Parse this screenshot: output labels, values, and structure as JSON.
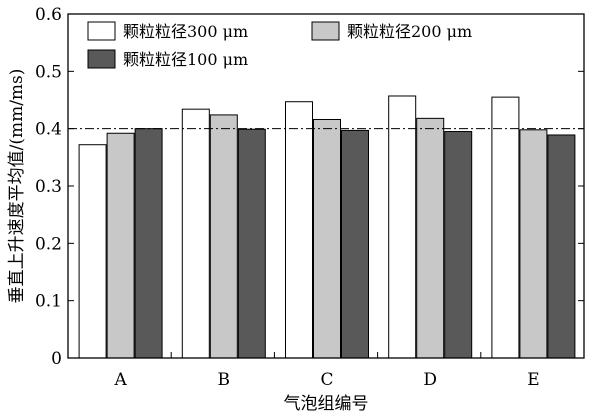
{
  "chart_data": {
    "type": "bar",
    "xlabel": "气泡组编号",
    "ylabel": "垂直上升速度平均值/(mm/ms)",
    "categories": [
      "A",
      "B",
      "C",
      "D",
      "E"
    ],
    "ylim": [
      0,
      0.6
    ],
    "yticks": [
      "0",
      "0.1",
      "0.2",
      "0.3",
      "0.4",
      "0.5",
      "0.6"
    ],
    "reference_line": {
      "value": 0.4,
      "style": "dash-dot"
    },
    "legend_position": "top-left",
    "series": [
      {
        "name": "颗粒粒径300 μm",
        "color": "#ffffff",
        "values": [
          0.372,
          0.434,
          0.447,
          0.457,
          0.455
        ]
      },
      {
        "name": "颗粒粒径200 μm",
        "color": "#c8c8c8",
        "values": [
          0.392,
          0.424,
          0.416,
          0.418,
          0.398
        ]
      },
      {
        "name": "颗粒粒径100 μm",
        "color": "#595959",
        "values": [
          0.4,
          0.399,
          0.397,
          0.395,
          0.389
        ]
      }
    ]
  }
}
